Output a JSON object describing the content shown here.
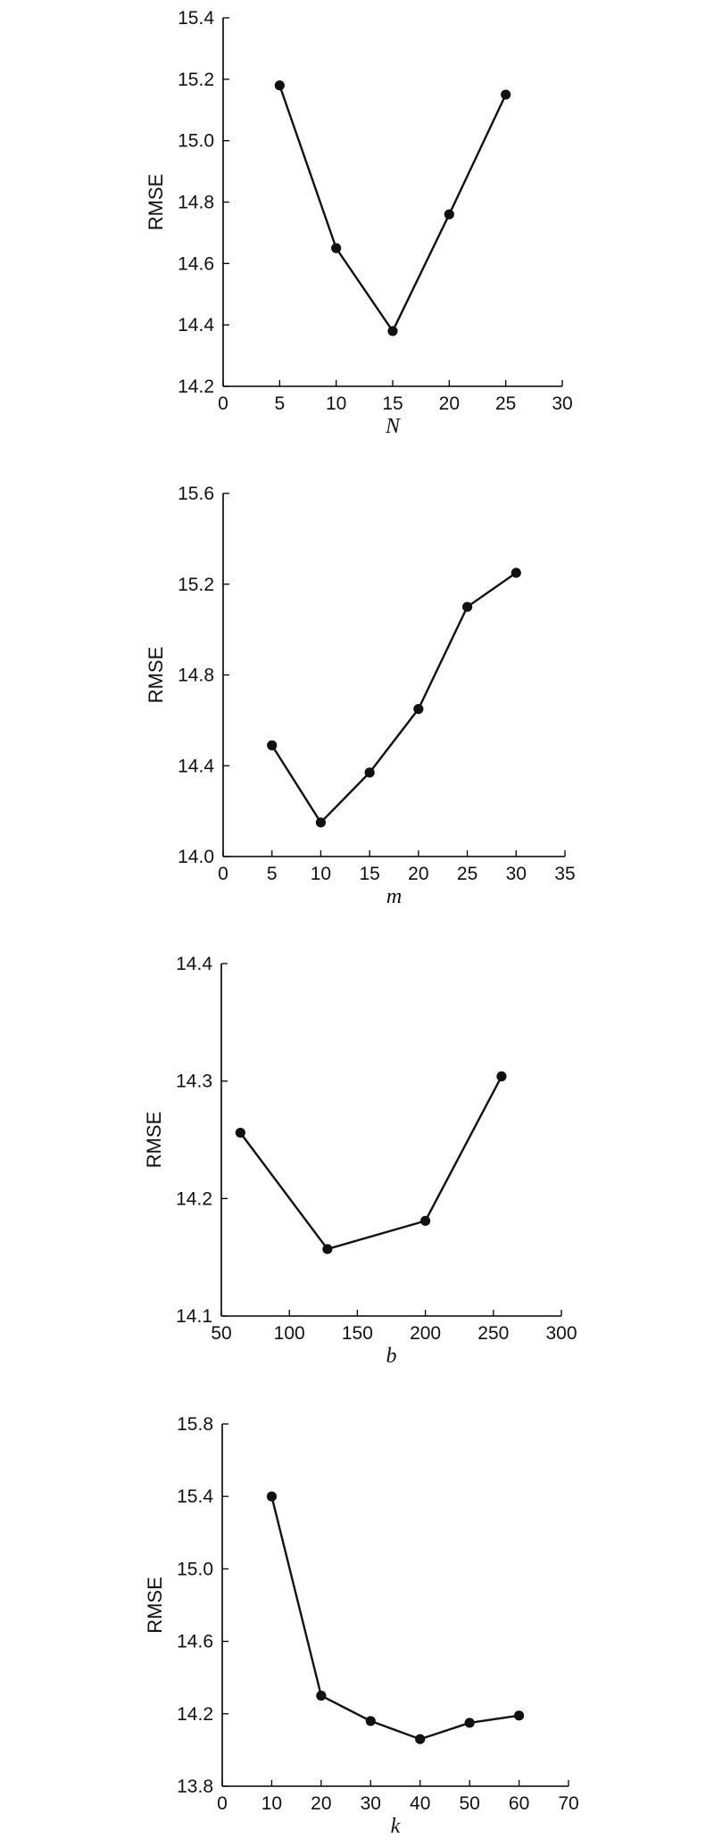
{
  "chart_data": [
    {
      "type": "line",
      "xlabel": "N",
      "ylabel": "RMSE",
      "xlim": [
        0,
        30
      ],
      "ylim": [
        14.2,
        15.4
      ],
      "xticks": [
        0,
        5,
        10,
        15,
        20,
        25,
        30
      ],
      "yticks": [
        14.2,
        14.4,
        14.6,
        14.8,
        15.0,
        15.2,
        15.4
      ],
      "yprecision": 1,
      "grid": false,
      "color": "#111111",
      "x": [
        5,
        10,
        15,
        20,
        25
      ],
      "y": [
        15.18,
        14.65,
        14.38,
        14.76,
        15.15
      ]
    },
    {
      "type": "line",
      "xlabel": "m",
      "ylabel": "RMSE",
      "xlim": [
        0,
        35
      ],
      "ylim": [
        14.0,
        15.6
      ],
      "xticks": [
        0,
        5,
        10,
        15,
        20,
        25,
        30,
        35
      ],
      "yticks": [
        14.0,
        14.4,
        14.8,
        15.2,
        15.6
      ],
      "yprecision": 1,
      "grid": false,
      "color": "#111111",
      "x": [
        5,
        10,
        15,
        20,
        25,
        30
      ],
      "y": [
        14.49,
        14.15,
        14.37,
        14.65,
        15.1,
        15.25
      ]
    },
    {
      "type": "line",
      "xlabel": "b",
      "ylabel": "RMSE",
      "xlim": [
        50,
        300
      ],
      "ylim": [
        14.1,
        14.4
      ],
      "xticks": [
        50,
        100,
        150,
        200,
        250,
        300
      ],
      "yticks": [
        14.1,
        14.2,
        14.3,
        14.4
      ],
      "yprecision": 1,
      "grid": false,
      "color": "#111111",
      "x": [
        64,
        128,
        200,
        256
      ],
      "y": [
        14.256,
        14.157,
        14.181,
        14.304
      ]
    },
    {
      "type": "line",
      "xlabel": "k",
      "ylabel": "RMSE",
      "xlim": [
        0,
        70
      ],
      "ylim": [
        13.8,
        15.8
      ],
      "xticks": [
        0,
        10,
        20,
        30,
        40,
        50,
        60,
        70
      ],
      "yticks": [
        13.8,
        14.2,
        14.6,
        15.0,
        15.4,
        15.8
      ],
      "yprecision": 1,
      "grid": false,
      "color": "#111111",
      "x": [
        10,
        20,
        30,
        40,
        50,
        60
      ],
      "y": [
        15.4,
        14.3,
        14.16,
        14.06,
        14.15,
        14.19
      ]
    }
  ]
}
